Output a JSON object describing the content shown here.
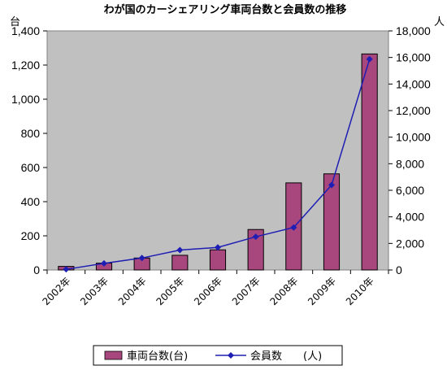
{
  "chart_data": {
    "type": "bar",
    "title": "わが国のカーシェアリング車両台数と会員数の推移",
    "categories": [
      "2002年",
      "2003年",
      "2004年",
      "2005年",
      "2006年",
      "2007年",
      "2008年",
      "2009年",
      "2010年"
    ],
    "series": [
      {
        "name": "車両台数(台)",
        "type": "bar",
        "axis": "left",
        "values": [
          21,
          40,
          70,
          86,
          118,
          237,
          510,
          563,
          1265
        ],
        "color": "#A8477E"
      },
      {
        "name": "会員数　　(人)",
        "type": "line",
        "axis": "right",
        "values": [
          50,
          500,
          900,
          1500,
          1700,
          2500,
          3200,
          6400,
          15870
        ],
        "color": "#1E1EB4",
        "marker": "diamond"
      }
    ],
    "y_left": {
      "unit": "台",
      "ylim": [
        0,
        1400
      ],
      "ticks": [
        "0",
        "200",
        "400",
        "600",
        "800",
        "1,000",
        "1,200",
        "1,400"
      ]
    },
    "y_right": {
      "unit": "人",
      "ylim": [
        0,
        18000
      ],
      "ticks": [
        "0",
        "2,000",
        "4,000",
        "6,000",
        "8,000",
        "10,000",
        "12,000",
        "14,000",
        "16,000",
        "18,000"
      ]
    },
    "plot_background": "#C0C0C0",
    "grid": false,
    "legend_position": "bottom"
  }
}
